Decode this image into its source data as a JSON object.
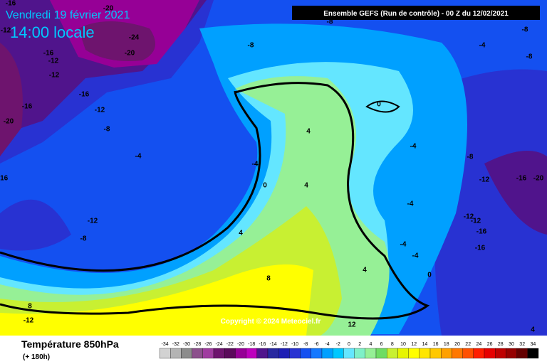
{
  "header": {
    "date": "Vendredi 19 février 2021",
    "time": "14:00 locale",
    "run": "Ensemble GEFS  (Run de contrôle)  - 00 Z du 12/02/2021",
    "copyright": "Copyright © 2024 Meteociel.fr"
  },
  "legend": {
    "title": "Température 850hPa",
    "subtitle": "(+ 180h)",
    "values": [
      -34,
      -32,
      -30,
      -28,
      -26,
      -24,
      -22,
      -20,
      -18,
      -16,
      -14,
      -12,
      -10,
      -8,
      -6,
      -4,
      -2,
      0,
      2,
      4,
      6,
      8,
      10,
      12,
      14,
      16,
      18,
      20,
      22,
      24,
      26,
      28,
      30,
      32,
      34
    ],
    "colors": [
      "#d2d2d2",
      "#b4b4b4",
      "#8c8c8c",
      "#8c508c",
      "#a03ca0",
      "#6e146e",
      "#5a0a5a",
      "#960096",
      "#be00be",
      "#50148c",
      "#2828a0",
      "#1e1eb4",
      "#2832d2",
      "#1450f0",
      "#1478ff",
      "#00a0ff",
      "#00c8ff",
      "#64e6ff",
      "#7ef0c8",
      "#96f096",
      "#6edc64",
      "#c8f032",
      "#e6f500",
      "#ffff00",
      "#ffe600",
      "#ffc800",
      "#ffa000",
      "#ff7800",
      "#ff5000",
      "#ff1e00",
      "#e60000",
      "#be0000",
      "#960000",
      "#640000",
      "#000000"
    ]
  },
  "contour_labels": [
    -16,
    -20,
    -12,
    -24,
    -16,
    -20,
    -12,
    -12,
    -16,
    -12,
    -16,
    -8,
    -20,
    -8,
    -8,
    -8,
    -4,
    -8,
    0,
    4,
    -4,
    -4,
    -4,
    -8,
    0,
    4,
    -12,
    -16,
    -20,
    -16,
    -4,
    -12,
    -12,
    -12,
    -16,
    4,
    -8,
    -4,
    -16,
    -4,
    4,
    0,
    8,
    8,
    -12,
    12,
    4
  ]
}
